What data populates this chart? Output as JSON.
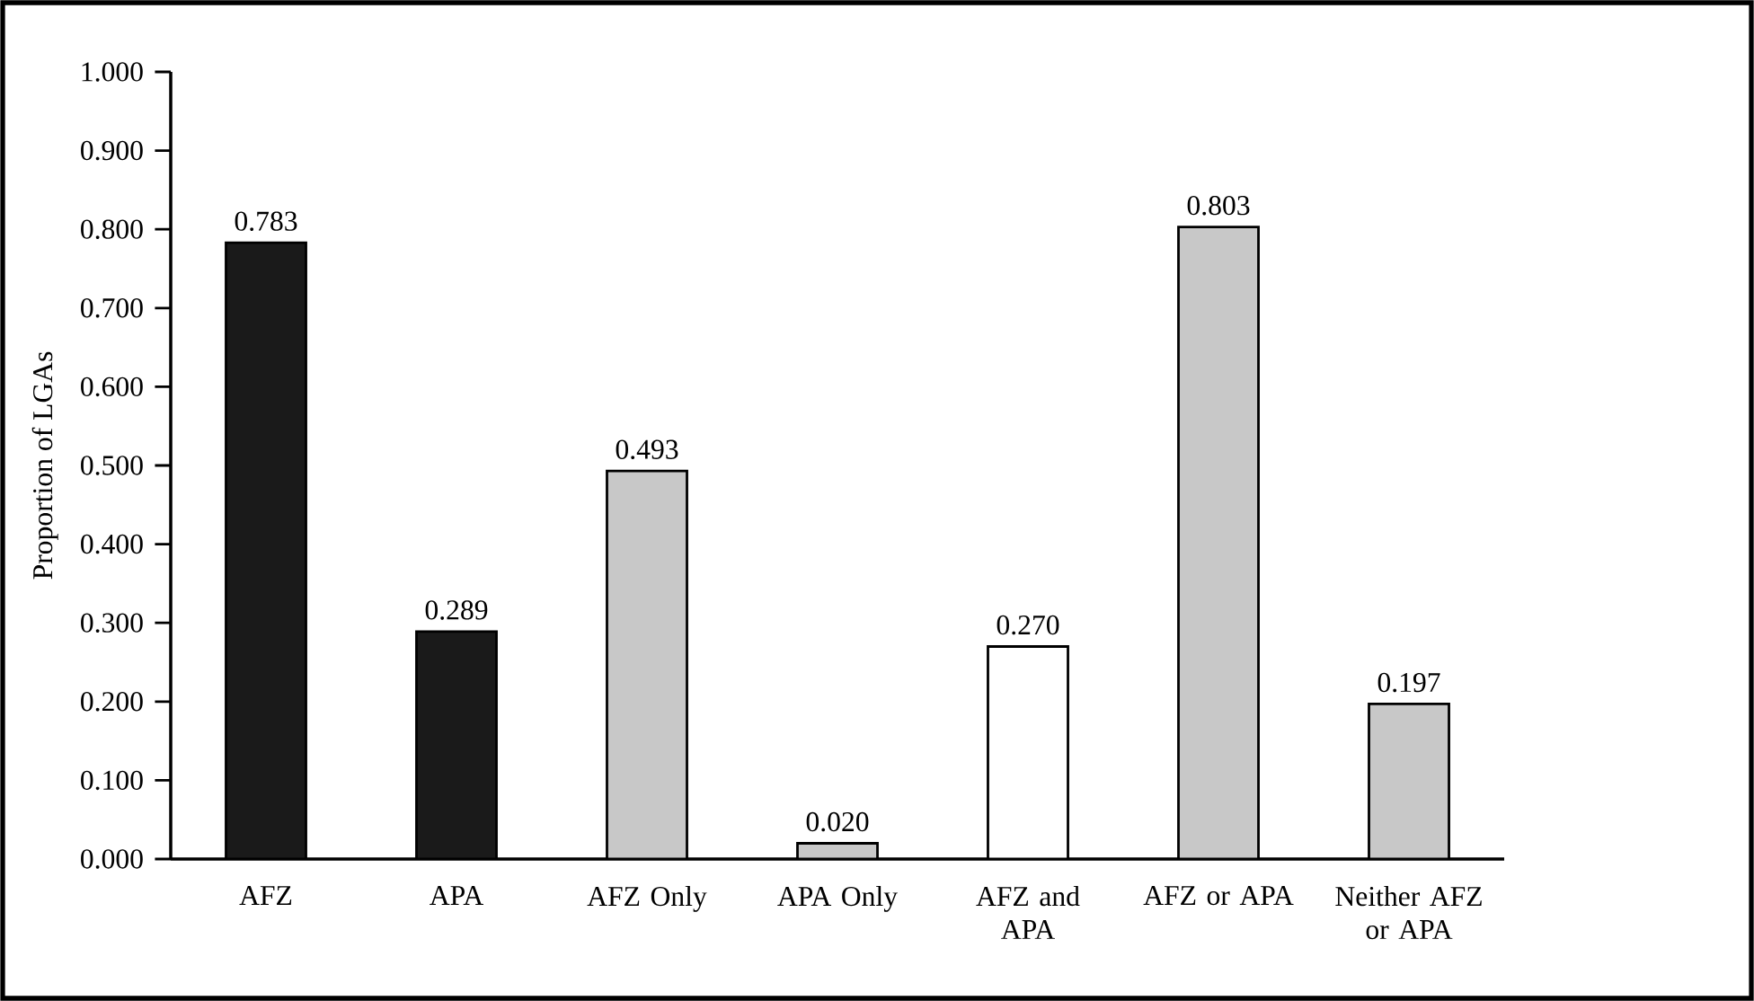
{
  "chart_data": {
    "type": "bar",
    "ylabel": "Proportion of LGAs",
    "categories": [
      "AFZ",
      "APA",
      "AFZ Only",
      "APA Only",
      "AFZ and APA",
      "AFZ or APA",
      "Neither AFZ or APA"
    ],
    "values": [
      0.783,
      0.289,
      0.493,
      0.02,
      0.27,
      0.803,
      0.197
    ],
    "colors": [
      "#1a1a1a",
      "#1a1a1a",
      "#c8c8c8",
      "#c8c8c8",
      "#ffffff",
      "#c8c8c8",
      "#c8c8c8"
    ],
    "ylim": [
      0,
      1
    ],
    "yticks": [
      {
        "value": 0,
        "label": "0.000"
      },
      {
        "value": 0.1,
        "label": "0.100"
      },
      {
        "value": 0.2,
        "label": "0.200"
      },
      {
        "value": 0.3,
        "label": "0.300"
      },
      {
        "value": 0.4,
        "label": "0.400"
      },
      {
        "value": 0.5,
        "label": "0.500"
      },
      {
        "value": 0.6,
        "label": "0.600"
      },
      {
        "value": 0.7,
        "label": "0.700"
      },
      {
        "value": 0.8,
        "label": "0.800"
      },
      {
        "value": 0.9,
        "label": "0.900"
      },
      {
        "value": 1,
        "label": "1.000"
      }
    ],
    "value_labels": [
      "0.783",
      "0.289",
      "0.493",
      "0.020",
      "0.270",
      "0.803",
      "0.197"
    ],
    "grid": false
  }
}
